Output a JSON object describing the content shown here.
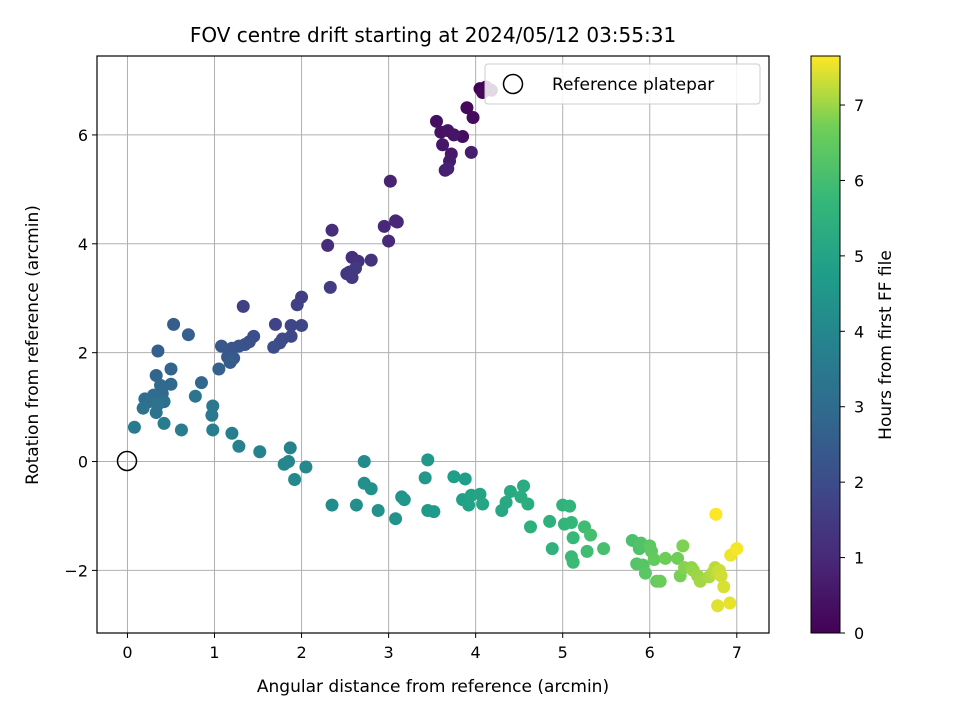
{
  "chart_data": {
    "type": "scatter",
    "title": "FOV centre drift starting at 2024/05/12 03:55:31",
    "xlabel": "Angular distance from reference (arcmin)",
    "ylabel": "Rotation from reference (arcmin)",
    "xlim": [
      -0.35,
      7.37
    ],
    "ylim": [
      -3.15,
      7.45
    ],
    "xticks": [
      0,
      1,
      2,
      3,
      4,
      5,
      6,
      7
    ],
    "yticks": [
      -2,
      0,
      2,
      4,
      6
    ],
    "xtick_labels": [
      "0",
      "1",
      "2",
      "3",
      "4",
      "5",
      "6",
      "7"
    ],
    "ytick_labels": [
      "−2",
      "0",
      "2",
      "4",
      "6"
    ],
    "grid": true,
    "legend": {
      "placement": "top-right",
      "entries": [
        "Reference platepar"
      ]
    },
    "reference_point": {
      "x": 0,
      "y": 0,
      "name": "Reference platepar"
    },
    "colorbar": {
      "label": "Hours from first FF file",
      "colormap": "viridis",
      "range": [
        0,
        7.65
      ],
      "ticks": [
        0,
        1,
        2,
        3,
        4,
        5,
        6,
        7
      ],
      "tick_labels": [
        "0",
        "1",
        "2",
        "3",
        "4",
        "5",
        "6",
        "7"
      ]
    },
    "series": [
      {
        "points": [
          [
            4.05,
            6.85
          ],
          [
            4.12,
            6.88
          ],
          [
            4.18,
            6.82
          ],
          [
            4.08,
            6.78
          ],
          [
            3.9,
            6.5
          ],
          [
            3.97,
            6.32
          ],
          [
            3.85,
            5.97
          ],
          [
            3.55,
            6.25
          ],
          [
            3.6,
            6.05
          ],
          [
            3.68,
            6.08
          ],
          [
            3.75,
            6.0
          ],
          [
            3.62,
            5.82
          ],
          [
            3.72,
            5.65
          ],
          [
            3.7,
            5.52
          ],
          [
            3.95,
            5.68
          ],
          [
            3.65,
            5.35
          ],
          [
            3.68,
            5.38
          ],
          [
            3.02,
            5.15
          ],
          [
            3.08,
            4.42
          ],
          [
            3.1,
            4.4
          ],
          [
            2.95,
            4.32
          ],
          [
            3.0,
            4.05
          ],
          [
            2.35,
            4.25
          ],
          [
            2.3,
            3.97
          ],
          [
            2.58,
            3.75
          ],
          [
            2.65,
            3.68
          ],
          [
            2.8,
            3.7
          ],
          [
            2.55,
            3.48
          ],
          [
            2.52,
            3.45
          ],
          [
            2.58,
            3.38
          ],
          [
            2.62,
            3.55
          ],
          [
            2.33,
            3.2
          ],
          [
            2.0,
            3.02
          ],
          [
            1.95,
            2.88
          ],
          [
            1.33,
            2.85
          ],
          [
            1.7,
            2.52
          ],
          [
            1.88,
            2.5
          ],
          [
            2.0,
            2.5
          ],
          [
            1.88,
            2.3
          ],
          [
            1.78,
            2.25
          ],
          [
            1.75,
            2.18
          ],
          [
            1.68,
            2.1
          ],
          [
            1.45,
            2.3
          ],
          [
            1.4,
            2.2
          ],
          [
            1.35,
            2.15
          ],
          [
            1.28,
            2.12
          ],
          [
            1.2,
            2.08
          ],
          [
            1.08,
            2.12
          ],
          [
            1.15,
            1.92
          ],
          [
            1.22,
            1.9
          ],
          [
            1.18,
            1.82
          ],
          [
            0.53,
            2.52
          ],
          [
            0.7,
            2.33
          ],
          [
            0.35,
            2.03
          ],
          [
            1.05,
            1.7
          ],
          [
            0.5,
            1.7
          ],
          [
            0.33,
            1.58
          ],
          [
            0.85,
            1.45
          ],
          [
            0.5,
            1.42
          ],
          [
            0.38,
            1.4
          ],
          [
            0.4,
            1.25
          ],
          [
            0.3,
            1.22
          ],
          [
            0.2,
            1.15
          ],
          [
            0.25,
            1.1
          ],
          [
            0.42,
            1.1
          ],
          [
            0.35,
            1.05
          ],
          [
            0.18,
            0.98
          ],
          [
            0.33,
            0.9
          ],
          [
            0.78,
            1.2
          ],
          [
            0.98,
            1.02
          ],
          [
            0.97,
            0.85
          ],
          [
            0.08,
            0.63
          ],
          [
            0.42,
            0.7
          ],
          [
            0.62,
            0.58
          ],
          [
            0.98,
            0.58
          ],
          [
            1.2,
            0.52
          ],
          [
            1.28,
            0.28
          ],
          [
            1.52,
            0.18
          ],
          [
            1.87,
            0.25
          ],
          [
            1.85,
            0.0
          ],
          [
            1.8,
            -0.05
          ],
          [
            2.05,
            -0.1
          ],
          [
            1.92,
            -0.33
          ],
          [
            2.72,
            0.0
          ],
          [
            2.35,
            -0.8
          ],
          [
            2.63,
            -0.8
          ],
          [
            2.72,
            -0.4
          ],
          [
            2.8,
            -0.5
          ],
          [
            2.88,
            -0.9
          ],
          [
            3.08,
            -1.05
          ],
          [
            3.15,
            -0.65
          ],
          [
            3.18,
            -0.7
          ],
          [
            3.42,
            -0.3
          ],
          [
            3.45,
            0.03
          ],
          [
            3.45,
            -0.9
          ],
          [
            3.52,
            -0.92
          ],
          [
            3.75,
            -0.28
          ],
          [
            3.88,
            -0.32
          ],
          [
            3.85,
            -0.7
          ],
          [
            3.92,
            -0.8
          ],
          [
            3.95,
            -0.62
          ],
          [
            4.05,
            -0.6
          ],
          [
            4.08,
            -0.78
          ],
          [
            4.3,
            -0.9
          ],
          [
            4.35,
            -0.75
          ],
          [
            4.4,
            -0.55
          ],
          [
            4.55,
            -0.45
          ],
          [
            4.52,
            -0.65
          ],
          [
            4.6,
            -0.78
          ],
          [
            4.63,
            -1.2
          ],
          [
            4.85,
            -1.1
          ],
          [
            4.88,
            -1.6
          ],
          [
            5.0,
            -0.8
          ],
          [
            5.08,
            -0.82
          ],
          [
            5.02,
            -1.15
          ],
          [
            5.1,
            -1.12
          ],
          [
            5.12,
            -1.4
          ],
          [
            5.1,
            -1.75
          ],
          [
            5.12,
            -1.85
          ],
          [
            5.25,
            -1.2
          ],
          [
            5.28,
            -1.65
          ],
          [
            5.32,
            -1.35
          ],
          [
            5.47,
            -1.6
          ],
          [
            5.8,
            -1.45
          ],
          [
            5.88,
            -1.6
          ],
          [
            5.9,
            -1.5
          ],
          [
            5.85,
            -1.88
          ],
          [
            5.92,
            -1.9
          ],
          [
            5.95,
            -2.05
          ],
          [
            6.0,
            -1.55
          ],
          [
            6.02,
            -1.65
          ],
          [
            6.05,
            -1.8
          ],
          [
            6.08,
            -2.2
          ],
          [
            6.12,
            -2.2
          ],
          [
            6.18,
            -1.78
          ],
          [
            6.32,
            -1.78
          ],
          [
            6.35,
            -2.1
          ],
          [
            6.38,
            -1.55
          ],
          [
            6.4,
            -1.95
          ],
          [
            6.48,
            -1.95
          ],
          [
            6.5,
            -2.0
          ],
          [
            6.55,
            -2.1
          ],
          [
            6.58,
            -2.2
          ],
          [
            6.68,
            -2.12
          ],
          [
            6.72,
            -2.05
          ],
          [
            6.75,
            -1.95
          ],
          [
            6.78,
            -2.05
          ],
          [
            6.8,
            -2.0
          ],
          [
            6.82,
            -2.1
          ],
          [
            6.85,
            -2.3
          ],
          [
            6.78,
            -2.65
          ],
          [
            6.92,
            -2.6
          ],
          [
            6.93,
            -1.72
          ],
          [
            7.0,
            -1.6
          ],
          [
            6.76,
            -0.97
          ]
        ]
      }
    ]
  }
}
